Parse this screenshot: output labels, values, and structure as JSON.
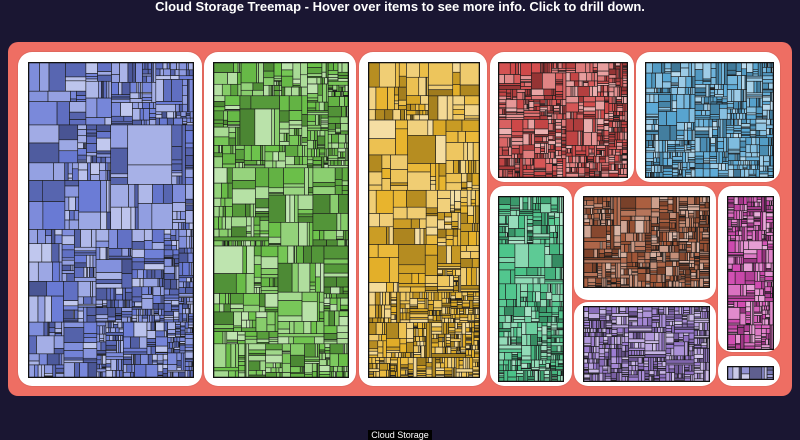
{
  "header": {
    "title": "Cloud Storage Treemap - Hover over items to see more info. Click to drill down."
  },
  "footer": {
    "root_label": "Cloud Storage"
  },
  "palette": {
    "frame": "#ee6e63",
    "background": "#1a1632",
    "group_colors": [
      "#6a7bd6",
      "#6cc24a",
      "#e8b32a",
      "#d24a4a",
      "#5aa9d6",
      "#4cc48a",
      "#a85a3a",
      "#9a7ad0",
      "#d04ab0",
      "#8a8ad0"
    ]
  }
}
